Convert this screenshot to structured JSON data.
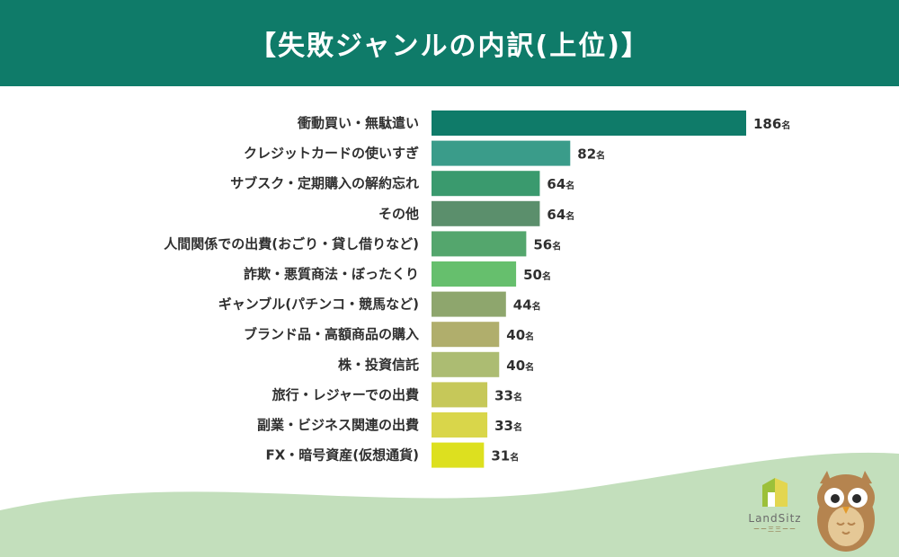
{
  "header": {
    "title": "【失敗ジャンルの内訳(上位)】"
  },
  "chart_data": {
    "type": "bar",
    "orientation": "horizontal",
    "title": "【失敗ジャンルの内訳(上位)】",
    "unit": "名",
    "categories": [
      "衝動買い・無駄遣い",
      "クレジットカードの使いすぎ",
      "サブスク・定期購入の解約忘れ",
      "その他",
      "人間関係での出費(おごり・貸し借りなど)",
      "詐欺・悪質商法・ぼったくり",
      "ギャンブル(パチンコ・競馬など)",
      "ブランド品・高額商品の購入",
      "株・投資信託",
      "旅行・レジャーでの出費",
      "副業・ビジネス関連の出費",
      "FX・暗号資産(仮想通貨)"
    ],
    "values": [
      186,
      82,
      64,
      64,
      56,
      50,
      44,
      40,
      40,
      33,
      33,
      31
    ],
    "colors": [
      "#0f7b69",
      "#3a9c8a",
      "#3a9a6e",
      "#5b8f6c",
      "#54a66d",
      "#66bf6d",
      "#8ea66d",
      "#b0ae6c",
      "#acbc72",
      "#c6c859",
      "#d9d64a",
      "#dde01f"
    ],
    "xlim": [
      0,
      186
    ],
    "grid": false,
    "legend": "none"
  },
  "logo": {
    "brand": "LandSitz",
    "tag": "ーー三三ーー"
  }
}
